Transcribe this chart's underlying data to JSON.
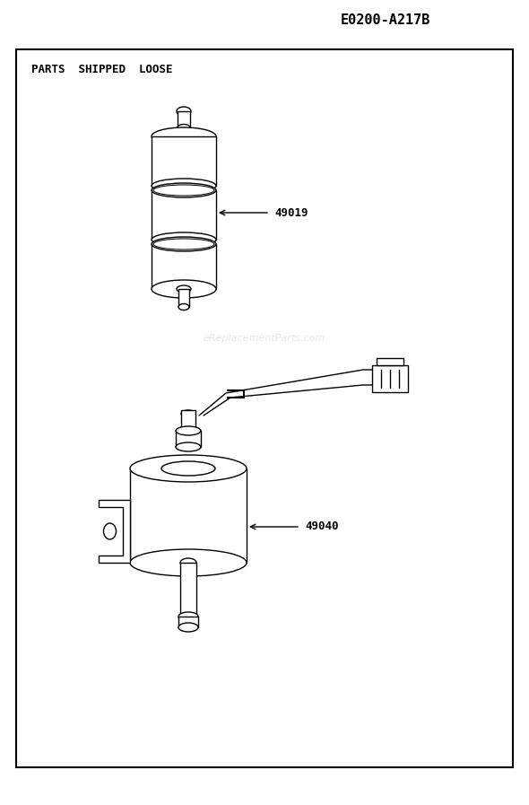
{
  "title": "E0200-A217B",
  "parts_label": "PARTS  SHIPPED  LOOSE",
  "watermark": "eReplacementParts.com",
  "part1_label": "49019",
  "part2_label": "49040",
  "bg_color": "#ffffff",
  "border_color": "#000000",
  "line_color": "#000000",
  "fig_width": 5.9,
  "fig_height": 8.97
}
